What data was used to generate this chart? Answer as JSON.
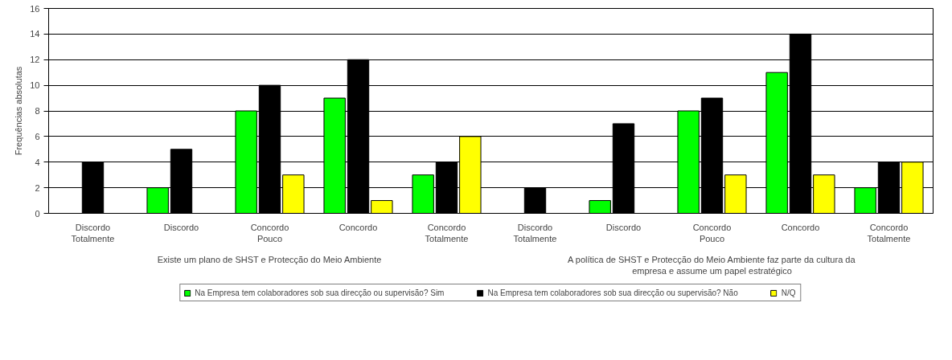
{
  "chart_data": {
    "type": "bar",
    "ylabel": "Frequências absolutas",
    "categories": [
      "Discordo Totalmente",
      "Discordo",
      "Concordo Pouco",
      "Concordo",
      "Concordo Totalmente",
      "Discordo Totalmente",
      "Discordo",
      "Concordo Pouco",
      "Concordo",
      "Concordo Totalmente"
    ],
    "series": [
      {
        "name": "Na Empresa tem colaboradores sob sua direcção ou supervisão? Sim",
        "color": "#00ff00",
        "values": [
          0,
          2,
          8,
          9,
          3,
          0,
          1,
          8,
          11,
          2
        ]
      },
      {
        "name": "Na Empresa tem colaboradores sob sua direcção ou supervisão? Não",
        "color": "#000000",
        "values": [
          4,
          5,
          10,
          12,
          4,
          2,
          7,
          9,
          14,
          4
        ]
      },
      {
        "name": "N/Q",
        "color": "#ffff00",
        "values": [
          0,
          0,
          3,
          1,
          6,
          0,
          0,
          3,
          3,
          4
        ]
      }
    ],
    "annotations": [
      "Existe um plano de SHST e Protecção do Meio Ambiente",
      "A política de SHST e Protecção do Meio Ambiente faz parte da cultura da empresa e assume um papel estratégico"
    ],
    "ylim": [
      0,
      16
    ],
    "yticks": [
      0,
      2,
      4,
      6,
      8,
      10,
      12,
      14,
      16
    ],
    "grid": "y",
    "legend": "bottom"
  }
}
